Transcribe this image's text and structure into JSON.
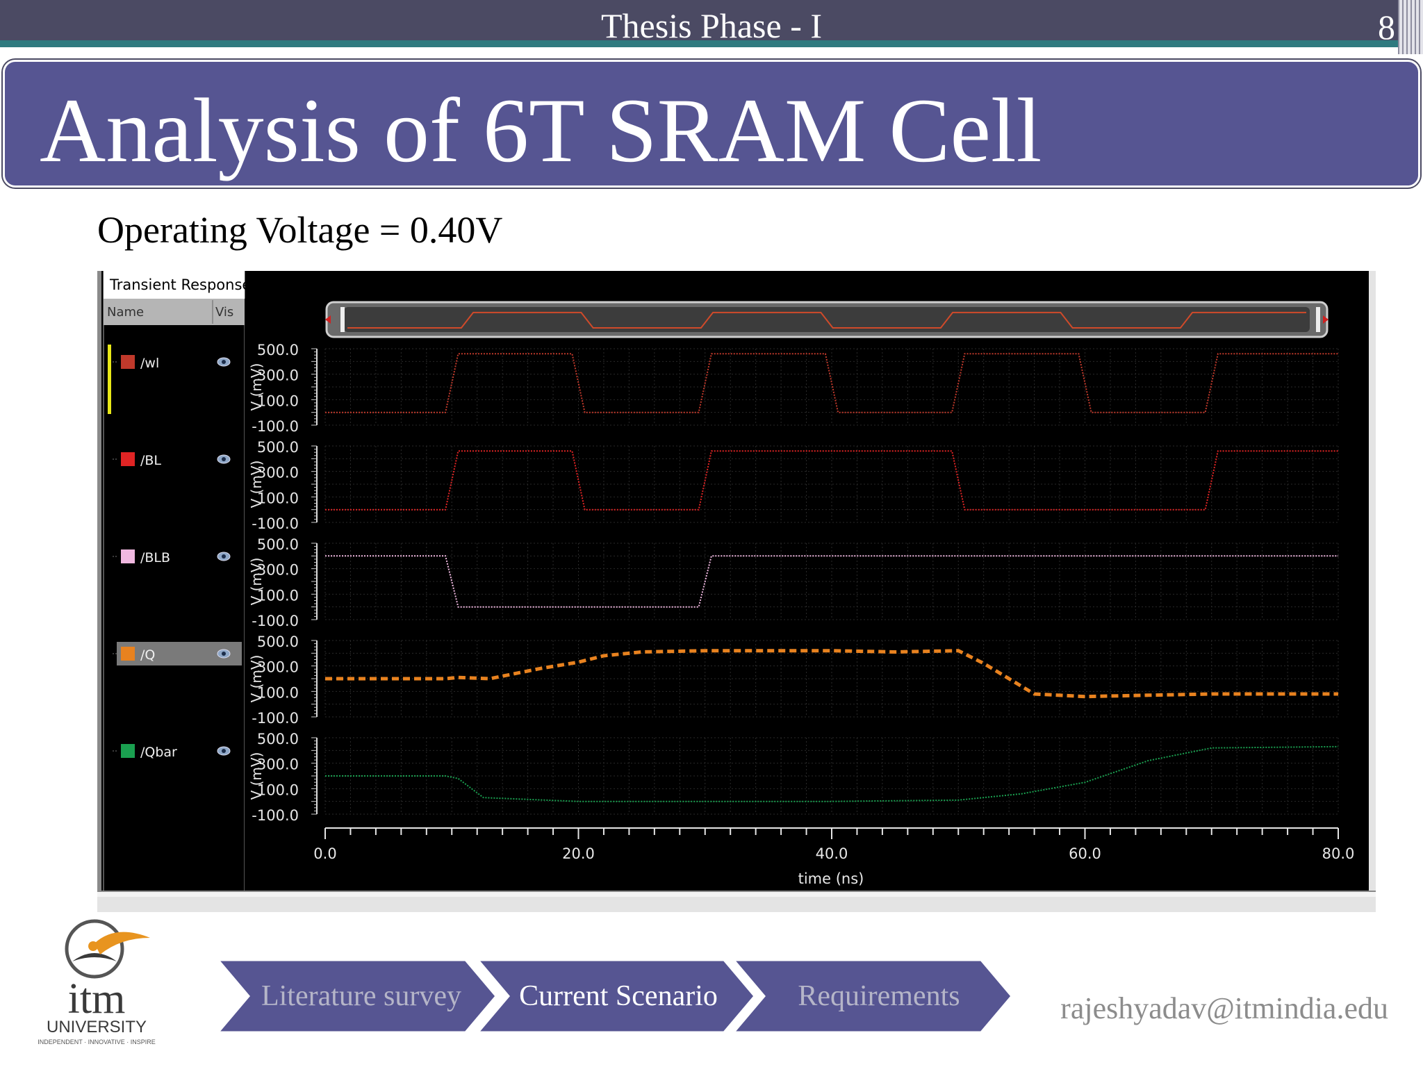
{
  "slide": {
    "header_title": "Thesis Phase - I",
    "page_number": "8",
    "title": "Analysis of 6T SRAM Cell",
    "subtitle": "Operating Voltage = 0.40V",
    "email": "rajeshyadav@itmindia.edu",
    "logo": {
      "name": "itm",
      "word": "UNIVERSITY",
      "tagline": "INDEPENDENT · INNOVATIVE · INSPIRE"
    },
    "nav": [
      {
        "label": "Literature survey",
        "active": false
      },
      {
        "label": "Current Scenario",
        "active": true
      },
      {
        "label": "Requirements",
        "active": false
      }
    ]
  },
  "viewer": {
    "window_title": "Transient Response",
    "col_name": "Name",
    "col_vis": "Vis",
    "vis_icon": "eye-icon"
  },
  "chart_data": {
    "type": "line",
    "xlabel": "time (ns)",
    "xlim": [
      0,
      80
    ],
    "xticks": [
      "0.0",
      "20.0",
      "40.0",
      "60.0",
      "80.0"
    ],
    "ylabel": "V (mV)",
    "ylim": [
      -100,
      500
    ],
    "yticks": [
      "500.0",
      "300.0",
      "100.0",
      "-100.0"
    ],
    "grid": true,
    "series": [
      {
        "name": "/wl",
        "color": "#c0392b",
        "style": "dotted",
        "x": [
          0,
          9.5,
          10.5,
          19.5,
          20.5,
          29.5,
          30.5,
          39.5,
          40.5,
          49.5,
          50.5,
          59.5,
          60.5,
          69.5,
          70.5,
          80
        ],
        "y": [
          0,
          0,
          460,
          460,
          0,
          0,
          460,
          460,
          0,
          0,
          460,
          460,
          0,
          0,
          460,
          460
        ]
      },
      {
        "name": "/BL",
        "color": "#e02424",
        "style": "dotted",
        "x": [
          0,
          9.5,
          10.5,
          19.5,
          20.5,
          29.5,
          30.5,
          49.5,
          50.5,
          69.5,
          70.5,
          80
        ],
        "y": [
          0,
          0,
          460,
          460,
          0,
          0,
          460,
          460,
          0,
          0,
          460,
          460
        ]
      },
      {
        "name": "/BLB",
        "color": "#f0b8e0",
        "style": "dotted",
        "x": [
          0,
          9.5,
          10.5,
          29.5,
          30.5,
          80
        ],
        "y": [
          400,
          400,
          0,
          0,
          400,
          400
        ]
      },
      {
        "name": "/Q",
        "color": "#e8821f",
        "style": "dashed",
        "highlighted": true,
        "x": [
          0,
          9.5,
          10.5,
          13,
          17,
          20,
          22,
          25,
          30,
          40,
          45,
          50,
          52,
          56,
          60,
          65,
          70,
          80
        ],
        "y": [
          200,
          200,
          210,
          200,
          280,
          330,
          380,
          410,
          420,
          420,
          410,
          420,
          320,
          80,
          60,
          70,
          80,
          80
        ]
      },
      {
        "name": "/Qbar",
        "color": "#1aa050",
        "style": "dotted",
        "x": [
          0,
          9.5,
          10.5,
          12.5,
          20,
          40,
          50,
          55,
          60,
          65,
          70,
          80
        ],
        "y": [
          200,
          200,
          180,
          30,
          0,
          0,
          10,
          60,
          150,
          320,
          420,
          430
        ]
      }
    ]
  }
}
